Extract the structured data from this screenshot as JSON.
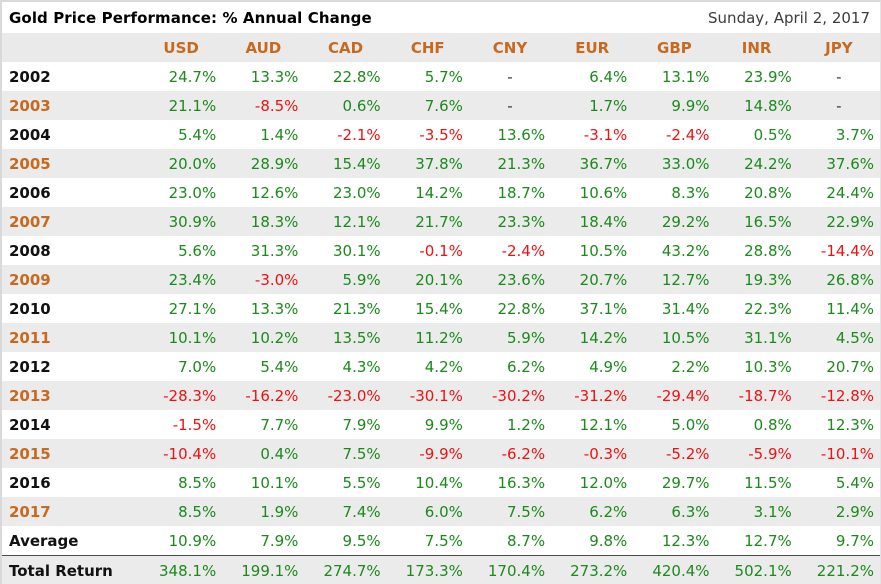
{
  "header": {
    "title": "Gold Price Performance: % Annual Change",
    "date": "Sunday, April 2, 2017"
  },
  "colors": {
    "positive_green": "#1a8a1a",
    "negative_red": "#ee1111",
    "accent_orange": "#c8691e",
    "row_alt_bg": "#ebebeb",
    "header_bg": "#eaeaea",
    "neutral_dash": "#333333"
  },
  "chart_data": {
    "type": "table",
    "title": "Gold Price Performance: % Annual Change",
    "columns": [
      "USD",
      "AUD",
      "CAD",
      "CHF",
      "CNY",
      "EUR",
      "GBP",
      "INR",
      "JPY"
    ],
    "rows": [
      {
        "label": "2002",
        "values": [
          "24.7%",
          "13.3%",
          "22.8%",
          "5.7%",
          "-",
          "6.4%",
          "13.1%",
          "23.9%",
          "-"
        ]
      },
      {
        "label": "2003",
        "values": [
          "21.1%",
          "-8.5%",
          "0.6%",
          "7.6%",
          "-",
          "1.7%",
          "9.9%",
          "14.8%",
          "-"
        ]
      },
      {
        "label": "2004",
        "values": [
          "5.4%",
          "1.4%",
          "-2.1%",
          "-3.5%",
          "13.6%",
          "-3.1%",
          "-2.4%",
          "0.5%",
          "3.7%"
        ]
      },
      {
        "label": "2005",
        "values": [
          "20.0%",
          "28.9%",
          "15.4%",
          "37.8%",
          "21.3%",
          "36.7%",
          "33.0%",
          "24.2%",
          "37.6%"
        ]
      },
      {
        "label": "2006",
        "values": [
          "23.0%",
          "12.6%",
          "23.0%",
          "14.2%",
          "18.7%",
          "10.6%",
          "8.3%",
          "20.8%",
          "24.4%"
        ]
      },
      {
        "label": "2007",
        "values": [
          "30.9%",
          "18.3%",
          "12.1%",
          "21.7%",
          "23.3%",
          "18.4%",
          "29.2%",
          "16.5%",
          "22.9%"
        ]
      },
      {
        "label": "2008",
        "values": [
          "5.6%",
          "31.3%",
          "30.1%",
          "-0.1%",
          "-2.4%",
          "10.5%",
          "43.2%",
          "28.8%",
          "-14.4%"
        ]
      },
      {
        "label": "2009",
        "values": [
          "23.4%",
          "-3.0%",
          "5.9%",
          "20.1%",
          "23.6%",
          "20.7%",
          "12.7%",
          "19.3%",
          "26.8%"
        ]
      },
      {
        "label": "2010",
        "values": [
          "27.1%",
          "13.3%",
          "21.3%",
          "15.4%",
          "22.8%",
          "37.1%",
          "31.4%",
          "22.3%",
          "11.4%"
        ]
      },
      {
        "label": "2011",
        "values": [
          "10.1%",
          "10.2%",
          "13.5%",
          "11.2%",
          "5.9%",
          "14.2%",
          "10.5%",
          "31.1%",
          "4.5%"
        ]
      },
      {
        "label": "2012",
        "values": [
          "7.0%",
          "5.4%",
          "4.3%",
          "4.2%",
          "6.2%",
          "4.9%",
          "2.2%",
          "10.3%",
          "20.7%"
        ]
      },
      {
        "label": "2013",
        "values": [
          "-28.3%",
          "-16.2%",
          "-23.0%",
          "-30.1%",
          "-30.2%",
          "-31.2%",
          "-29.4%",
          "-18.7%",
          "-12.8%"
        ]
      },
      {
        "label": "2014",
        "values": [
          "-1.5%",
          "7.7%",
          "7.9%",
          "9.9%",
          "1.2%",
          "12.1%",
          "5.0%",
          "0.8%",
          "12.3%"
        ]
      },
      {
        "label": "2015",
        "values": [
          "-10.4%",
          "0.4%",
          "7.5%",
          "-9.9%",
          "-6.2%",
          "-0.3%",
          "-5.2%",
          "-5.9%",
          "-10.1%"
        ]
      },
      {
        "label": "2016",
        "values": [
          "8.5%",
          "10.1%",
          "5.5%",
          "10.4%",
          "16.3%",
          "12.0%",
          "29.7%",
          "11.5%",
          "5.4%"
        ]
      },
      {
        "label": "2017",
        "values": [
          "8.5%",
          "1.9%",
          "7.4%",
          "6.0%",
          "7.5%",
          "6.2%",
          "6.3%",
          "3.1%",
          "2.9%"
        ]
      },
      {
        "label": "Average",
        "values": [
          "10.9%",
          "7.9%",
          "9.5%",
          "7.5%",
          "8.7%",
          "9.8%",
          "12.3%",
          "12.7%",
          "9.7%"
        ]
      },
      {
        "label": "Total Return",
        "values": [
          "348.1%",
          "199.1%",
          "274.7%",
          "173.3%",
          "170.4%",
          "273.2%",
          "420.4%",
          "502.1%",
          "221.2%"
        ]
      }
    ]
  }
}
